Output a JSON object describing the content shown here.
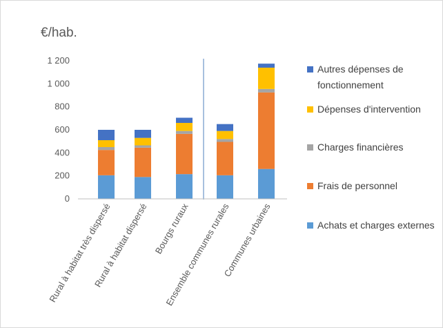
{
  "chart_data": {
    "type": "bar",
    "stacked": true,
    "unit_label": "€/hab.",
    "categories": [
      "Rural à habitat très dispersé",
      "Rural à habitat dispersé",
      "Bourgs ruraux",
      "Ensemble communes rurales",
      "Communes urbaines"
    ],
    "series": [
      {
        "name": "Achats et charges externes",
        "color": "#5b9bd5",
        "values": [
          205,
          190,
          215,
          205,
          260
        ]
      },
      {
        "name": "Frais de personnel",
        "color": "#ed7d31",
        "values": [
          220,
          255,
          350,
          290,
          665
        ]
      },
      {
        "name": "Charges financières",
        "color": "#a5a5a5",
        "values": [
          25,
          20,
          25,
          25,
          30
        ]
      },
      {
        "name": "Dépenses d'intervention",
        "color": "#ffc000",
        "values": [
          60,
          65,
          70,
          70,
          185
        ]
      },
      {
        "name": "Autres dépenses de fonctionnement",
        "color": "#4472c4",
        "values": [
          90,
          70,
          45,
          60,
          35
        ]
      }
    ],
    "legend_lines": [
      [
        "Autres dépenses de",
        "fonctionnement"
      ],
      [
        "Dépenses d'intervention"
      ],
      [
        "Charges financières"
      ],
      [
        "Frais de personnel"
      ],
      [
        "Achats et charges externes"
      ]
    ],
    "y_ticks": [
      "0",
      "200",
      "400",
      "600",
      "800",
      "1 000",
      "1 200"
    ],
    "ylim": [
      0,
      1200
    ],
    "legend_position": "right",
    "grid": false
  }
}
